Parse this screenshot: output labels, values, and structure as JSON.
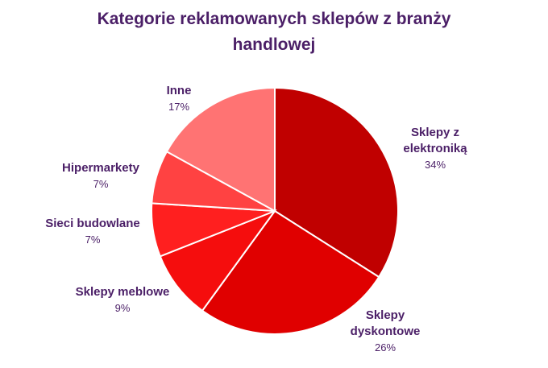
{
  "chart_data": {
    "type": "pie",
    "title": "Kategorie reklamowanych sklepów z branży handlowej",
    "categories": [
      "Sklepy z elektroniką",
      "Sklepy dyskontowe",
      "Sklepy meblowe",
      "Sieci budowlane",
      "Hipermarkety",
      "Inne"
    ],
    "values": [
      34,
      26,
      9,
      7,
      7,
      17
    ],
    "value_labels": [
      "34%",
      "26%",
      "9%",
      "7%",
      "7%",
      "17%"
    ],
    "colors": [
      "#c00000",
      "#e00000",
      "#f50d0d",
      "#ff1f1f",
      "#ff4242",
      "#ff7373"
    ]
  }
}
